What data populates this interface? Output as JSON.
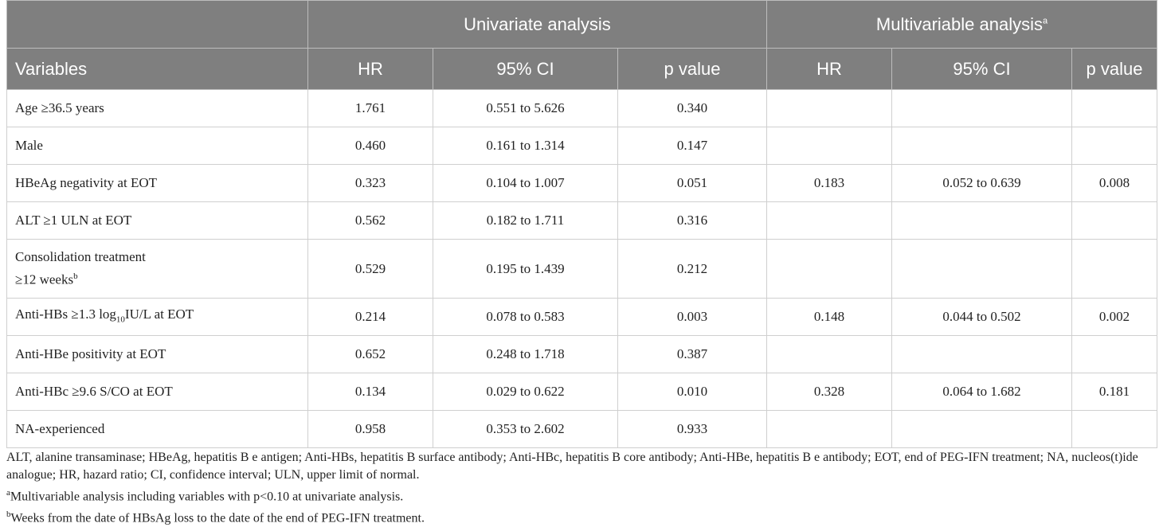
{
  "table": {
    "groups": [
      "Univariate analysis",
      {
        "text": "Multivariable analysis",
        "sup": "a"
      }
    ],
    "columns": [
      "Variables",
      "HR",
      "95% CI",
      "p value",
      "HR",
      "95% CI",
      "p value"
    ],
    "rows": [
      {
        "variable": "Age ≥36.5 years",
        "univariate": [
          "1.761",
          "0.551 to 5.626",
          "0.340"
        ]
      },
      {
        "variable": "Male",
        "univariate": [
          "0.460",
          "0.161 to 1.314",
          "0.147"
        ]
      },
      {
        "variable": "HBeAg negativity at EOT",
        "univariate": [
          "0.323",
          "0.104 to 1.007",
          "0.051"
        ],
        "multivariable": [
          "0.183",
          "0.052 to 0.639",
          "0.008"
        ]
      },
      {
        "variable": "ALT ≥1 ULN at EOT",
        "univariate": [
          "0.562",
          "0.182 to 1.711",
          "0.316"
        ]
      },
      {
        "variable": {
          "lines": [
            "Consolidation treatment",
            "≥12 weeks"
          ],
          "sup": "b"
        },
        "univariate": [
          "0.529",
          "0.195 to 1.439",
          "0.212"
        ]
      },
      {
        "variable": {
          "text": "Anti-HBs ≥1.3 log",
          "sub": "10",
          "rest": "IU/L at EOT"
        },
        "univariate": [
          "0.214",
          "0.078 to 0.583",
          "0.003"
        ],
        "multivariable": [
          "0.148",
          "0.044 to 0.502",
          "0.002"
        ]
      },
      {
        "variable": "Anti-HBe positivity at EOT",
        "univariate": [
          "0.652",
          "0.248 to 1.718",
          "0.387"
        ]
      },
      {
        "variable": "Anti-HBc ≥9.6 S/CO at EOT",
        "univariate": [
          "0.134",
          "0.029 to 0.622",
          "0.010"
        ],
        "multivariable": [
          "0.328",
          "0.064 to 1.682",
          "0.181"
        ]
      },
      {
        "variable": "NA-experienced",
        "univariate": [
          "0.958",
          "0.353 to 2.602",
          "0.933"
        ]
      }
    ]
  },
  "footnotes": {
    "abbreviations": "ALT, alanine transaminase; HBeAg, hepatitis B e antigen; Anti-HBs, hepatitis B surface antibody; Anti-HBc, hepatitis B core antibody; Anti-HBe, hepatitis B e antibody; EOT, end of PEG-IFN treatment; NA, nucleos(t)ide analogue; HR, hazard ratio; CI, confidence interval; ULN, upper limit of normal.",
    "notes": [
      {
        "marker": "a",
        "text": "Multivariable analysis including variables with p<0.10 at univariate analysis."
      },
      {
        "marker": "b",
        "text": "Weeks from the date of HBsAg loss to the date of the end of PEG-IFN treatment."
      }
    ]
  }
}
